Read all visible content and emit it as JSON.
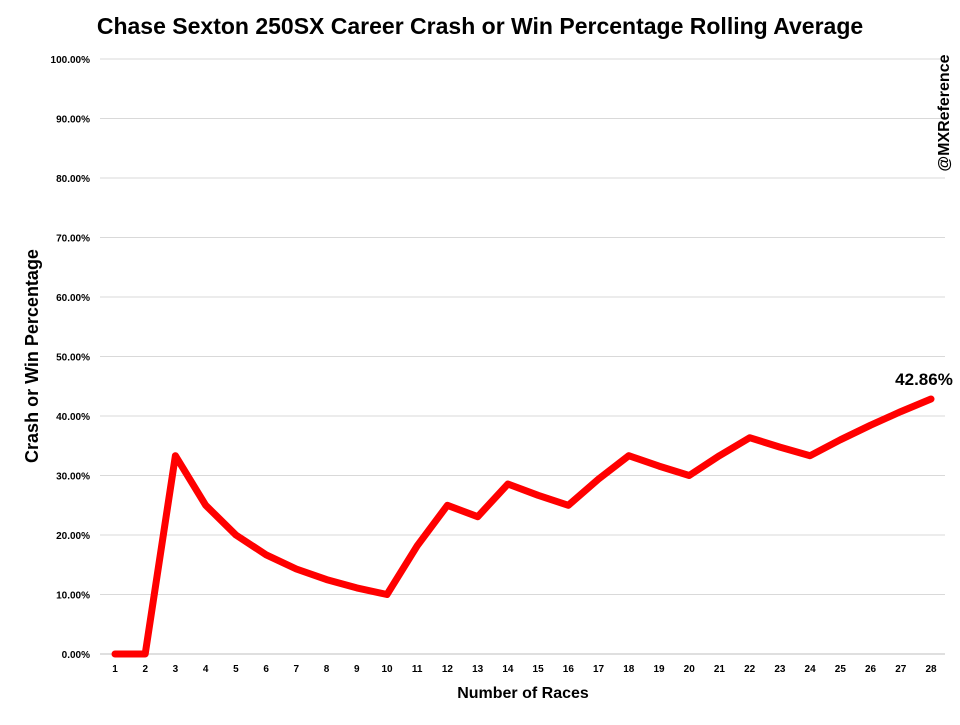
{
  "chart_data": {
    "type": "line",
    "title": "Chase Sexton 250SX Career Crash or Win Percentage Rolling Average",
    "xlabel": "Number of Races",
    "ylabel": "Crash or Win Percentage",
    "watermark": "@MXReference",
    "ylim": [
      0,
      100
    ],
    "y_ticks": [
      "0.00%",
      "10.00%",
      "20.00%",
      "30.00%",
      "40.00%",
      "50.00%",
      "60.00%",
      "70.00%",
      "80.00%",
      "90.00%",
      "100.00%"
    ],
    "x": [
      1,
      2,
      3,
      4,
      5,
      6,
      7,
      8,
      9,
      10,
      11,
      12,
      13,
      14,
      15,
      16,
      17,
      18,
      19,
      20,
      21,
      22,
      23,
      24,
      25,
      26,
      27,
      28
    ],
    "series": [
      {
        "name": "Crash or Win Percentage",
        "color": "#ff0000",
        "values": [
          0,
          0,
          33.33,
          25,
          20,
          16.67,
          14.29,
          12.5,
          11.11,
          10,
          18.18,
          25,
          23.08,
          28.57,
          26.67,
          25,
          29.41,
          33.33,
          31.58,
          30,
          33.33,
          36.36,
          34.78,
          33.33,
          36,
          38.46,
          40.74,
          42.86
        ]
      }
    ],
    "annotations": [
      {
        "label": "42.86%",
        "x": 28,
        "y": 42.86
      }
    ],
    "grid": true,
    "legend": "none"
  }
}
